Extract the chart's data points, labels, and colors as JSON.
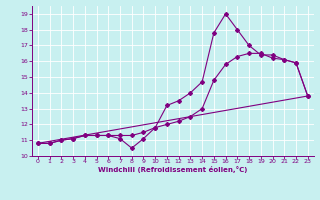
{
  "xlabel": "Windchill (Refroidissement éolien,°C)",
  "bg_color": "#c8f0f0",
  "grid_color": "#ffffff",
  "line_color": "#800080",
  "xlim": [
    -0.5,
    23.5
  ],
  "ylim": [
    10,
    19.5
  ],
  "xticks": [
    0,
    1,
    2,
    3,
    4,
    5,
    6,
    7,
    8,
    9,
    10,
    11,
    12,
    13,
    14,
    15,
    16,
    17,
    18,
    19,
    20,
    21,
    22,
    23
  ],
  "yticks": [
    10,
    11,
    12,
    13,
    14,
    15,
    16,
    17,
    18,
    19
  ],
  "line1_x": [
    0,
    1,
    2,
    3,
    4,
    5,
    6,
    7,
    8,
    9,
    10,
    11,
    12,
    13,
    14,
    15,
    16,
    17,
    18,
    19,
    20,
    21,
    22,
    23
  ],
  "line1_y": [
    10.8,
    10.8,
    11.0,
    11.1,
    11.3,
    11.3,
    11.3,
    11.1,
    10.5,
    11.1,
    11.8,
    13.2,
    13.5,
    14.0,
    14.7,
    17.8,
    19.0,
    18.0,
    17.0,
    16.4,
    16.4,
    16.1,
    15.9,
    13.8
  ],
  "line2_x": [
    0,
    1,
    2,
    3,
    4,
    5,
    6,
    7,
    8,
    9,
    10,
    11,
    12,
    13,
    14,
    15,
    16,
    17,
    18,
    19,
    20,
    21,
    22,
    23
  ],
  "line2_y": [
    10.8,
    10.8,
    11.0,
    11.1,
    11.3,
    11.3,
    11.3,
    11.3,
    11.3,
    11.5,
    11.8,
    12.0,
    12.2,
    12.5,
    13.0,
    14.8,
    15.8,
    16.3,
    16.5,
    16.5,
    16.2,
    16.1,
    15.9,
    13.8
  ],
  "line3_x": [
    0,
    23
  ],
  "line3_y": [
    10.8,
    13.8
  ],
  "marker": "D",
  "markersize": 2.0,
  "linewidth": 0.8
}
